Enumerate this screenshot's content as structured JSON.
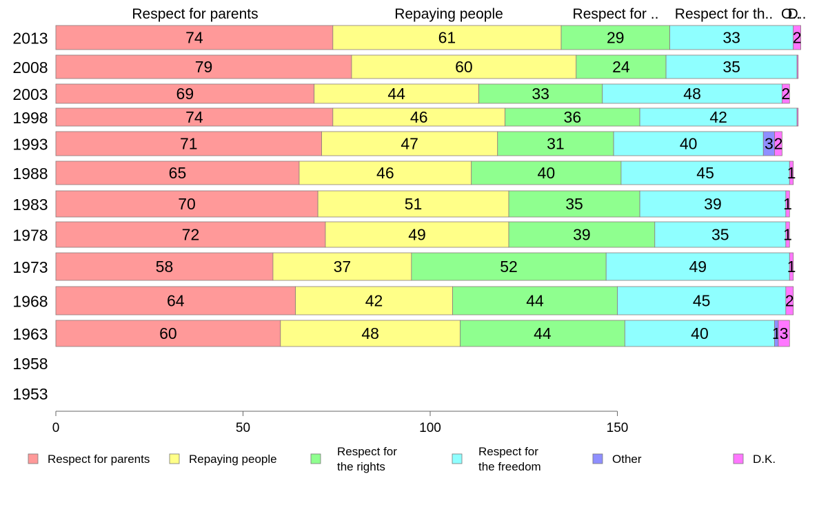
{
  "chart_data": {
    "type": "bar",
    "orientation": "horizontal",
    "stacked": true,
    "title": "",
    "xlabel": "",
    "ylabel": "",
    "categories": [
      "2013",
      "2008",
      "2003",
      "1998",
      "1993",
      "1988",
      "1983",
      "1978",
      "1973",
      "1968",
      "1963",
      "1958",
      "1953"
    ],
    "xlim": [
      0,
      200
    ],
    "xticks": [
      "0",
      "50",
      "100",
      "150"
    ],
    "grid": false,
    "legend_position": "bottom",
    "column_headers": [
      "Respect for parents",
      "Repaying people",
      "Respect for ..",
      "Respect for th..",
      "O..",
      "D.."
    ],
    "series": [
      {
        "name": "Respect for parents",
        "color": "#ff9999",
        "values": [
          74,
          79,
          69,
          74,
          71,
          65,
          70,
          72,
          58,
          64,
          60,
          null,
          null
        ]
      },
      {
        "name": "Repaying people",
        "color": "#ffff88",
        "values": [
          61,
          60,
          44,
          46,
          47,
          46,
          51,
          49,
          37,
          42,
          48,
          null,
          null
        ]
      },
      {
        "name": "Respect for the rights",
        "color": "#8fff8f",
        "values": [
          29,
          24,
          33,
          36,
          31,
          40,
          35,
          39,
          52,
          44,
          44,
          null,
          null
        ]
      },
      {
        "name": "Respect for the freedom",
        "color": "#8fffff",
        "values": [
          33,
          35,
          48,
          42,
          40,
          45,
          39,
          35,
          49,
          45,
          40,
          null,
          null
        ]
      },
      {
        "name": "Other",
        "color": "#8f8fff",
        "values": [
          0,
          0,
          0,
          0,
          3,
          0,
          0,
          0,
          0,
          0,
          1,
          null,
          null
        ]
      },
      {
        "name": "D.K.",
        "color": "#ff77ff",
        "values": [
          2,
          0.3,
          2,
          0.3,
          2,
          1,
          1,
          1,
          1,
          2,
          3,
          null,
          null
        ]
      }
    ],
    "data_labels": [
      [
        "74",
        "61",
        "29",
        "33",
        "",
        "2"
      ],
      [
        "79",
        "60",
        "24",
        "35",
        "",
        ""
      ],
      [
        "69",
        "44",
        "33",
        "48",
        "",
        "2"
      ],
      [
        "74",
        "46",
        "36",
        "42",
        "",
        ""
      ],
      [
        "71",
        "47",
        "31",
        "40",
        "3",
        "2"
      ],
      [
        "65",
        "46",
        "40",
        "45",
        "",
        "1"
      ],
      [
        "70",
        "51",
        "35",
        "39",
        "",
        "1"
      ],
      [
        "72",
        "49",
        "39",
        "35",
        "",
        "1"
      ],
      [
        "58",
        "37",
        "52",
        "49",
        "",
        "1"
      ],
      [
        "64",
        "42",
        "44",
        "45",
        "",
        "2"
      ],
      [
        "60",
        "48",
        "44",
        "40",
        "1",
        "3"
      ],
      [
        "",
        "",
        "",
        "",
        "",
        ""
      ],
      [
        "",
        "",
        "",
        "",
        "",
        ""
      ]
    ],
    "legend": [
      {
        "label": [
          "Respect for parents"
        ],
        "color": "#ff9999"
      },
      {
        "label": [
          "Repaying people"
        ],
        "color": "#ffff88"
      },
      {
        "label": [
          "Respect for",
          "the rights"
        ],
        "color": "#8fff8f"
      },
      {
        "label": [
          "Respect for",
          "the freedom"
        ],
        "color": "#8fffff"
      },
      {
        "label": [
          "Other"
        ],
        "color": "#8f8fff"
      },
      {
        "label": [
          "D.K."
        ],
        "color": "#ff77ff"
      }
    ]
  }
}
